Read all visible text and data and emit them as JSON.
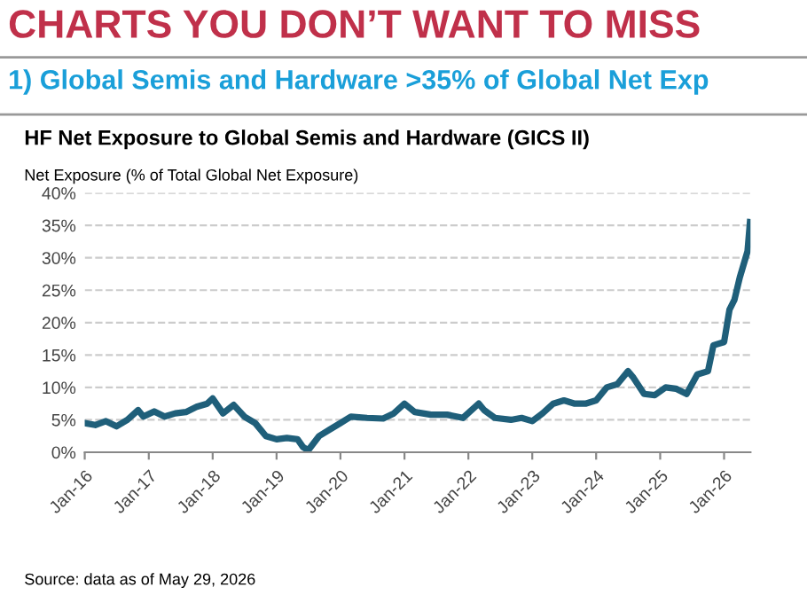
{
  "chart_data": {
    "type": "line",
    "title": "CHARTS YOU DON’T WANT TO MISS",
    "subtitle": "1) Global Semis and Hardware >35% of Global Net Exp",
    "annotations": [
      "HF Net Exposure to Global Semis and Hardware (GICS II)",
      "Source: data as of May 29, 2026"
    ],
    "ylabel": "Net Exposure (% of Total Global Net Exposure)",
    "x": [
      "2016-01",
      "2016-03",
      "2016-05",
      "2016-07",
      "2016-09",
      "2016-11",
      "2016-12",
      "2017-02",
      "2017-04",
      "2017-06",
      "2017-08",
      "2017-10",
      "2017-12",
      "2018-01",
      "2018-03",
      "2018-05",
      "2018-07",
      "2018-09",
      "2018-11",
      "2019-01",
      "2019-03",
      "2019-05",
      "2019-06",
      "2019-07",
      "2019-09",
      "2019-11",
      "2020-01",
      "2020-03",
      "2020-06",
      "2020-09",
      "2020-11",
      "2021-01",
      "2021-03",
      "2021-06",
      "2021-09",
      "2021-12",
      "2022-03",
      "2022-04",
      "2022-06",
      "2022-09",
      "2022-11",
      "2023-01",
      "2023-03",
      "2023-05",
      "2023-07",
      "2023-09",
      "2023-11",
      "2024-01",
      "2024-03",
      "2024-05",
      "2024-07",
      "2024-08",
      "2024-10",
      "2024-12",
      "2025-02",
      "2025-04",
      "2025-06",
      "2025-08",
      "2025-10",
      "2025-11",
      "2026-01",
      "2026-02",
      "2026-03",
      "2026-04",
      "2026-05-15",
      "2026-05-29"
    ],
    "series": [
      {
        "color": "#1f5f7a",
        "values": [
          4.5,
          4.2,
          4.8,
          4.0,
          5.0,
          6.5,
          5.5,
          6.3,
          5.5,
          6.0,
          6.2,
          7.0,
          7.5,
          8.3,
          6.0,
          7.3,
          5.5,
          4.5,
          2.5,
          2.0,
          2.2,
          2.0,
          0.8,
          0.3,
          2.5,
          3.5,
          4.5,
          5.5,
          5.3,
          5.2,
          6.0,
          7.5,
          6.2,
          5.8,
          5.8,
          5.3,
          7.5,
          6.5,
          5.3,
          5.0,
          5.3,
          4.8,
          6.0,
          7.5,
          8.0,
          7.5,
          7.5,
          8.0,
          10.0,
          10.5,
          12.5,
          11.5,
          9.0,
          8.8,
          10.0,
          9.8,
          9.0,
          12.0,
          12.5,
          16.5,
          17.0,
          22.0,
          23.5,
          27.0,
          31.0,
          35.5
        ]
      }
    ],
    "xlim": [
      "2016-01",
      "2026-06"
    ],
    "xticks": [
      {
        "value": "2016-01",
        "label": "Jan-16"
      },
      {
        "value": "2017-01",
        "label": "Jan-17"
      },
      {
        "value": "2018-01",
        "label": "Jan-18"
      },
      {
        "value": "2019-01",
        "label": "Jan-19"
      },
      {
        "value": "2020-01",
        "label": "Jan-20"
      },
      {
        "value": "2021-01",
        "label": "Jan-21"
      },
      {
        "value": "2022-01",
        "label": "Jan-22"
      },
      {
        "value": "2023-01",
        "label": "Jan-23"
      },
      {
        "value": "2024-01",
        "label": "Jan-24"
      },
      {
        "value": "2025-01",
        "label": "Jan-25"
      },
      {
        "value": "2026-01",
        "label": "Jan-26"
      }
    ],
    "ylim": [
      0,
      40
    ],
    "yticks": [
      {
        "value": 0,
        "label": "0%"
      },
      {
        "value": 5,
        "label": "5%"
      },
      {
        "value": 10,
        "label": "10%"
      },
      {
        "value": 15,
        "label": "15%"
      },
      {
        "value": 20,
        "label": "20%"
      },
      {
        "value": 25,
        "label": "25%"
      },
      {
        "value": 30,
        "label": "30%"
      },
      {
        "value": 35,
        "label": "35%"
      },
      {
        "value": 40,
        "label": "40%"
      }
    ],
    "grid": "y",
    "legend": false,
    "marker": "none",
    "line_style": "solid"
  }
}
